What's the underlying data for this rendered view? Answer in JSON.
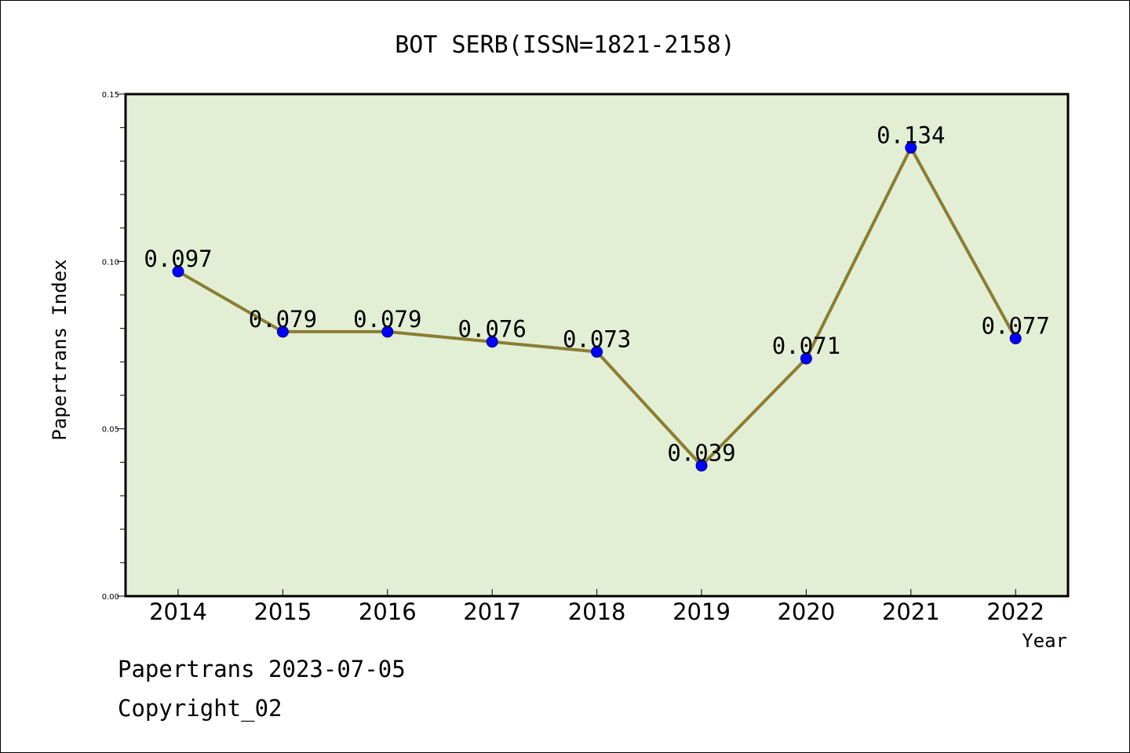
{
  "chart_data": {
    "type": "line",
    "title": "BOT SERB(ISSN=1821-2158)",
    "xlabel": "Year",
    "ylabel": "Papertrans Index",
    "x": [
      "2014",
      "2015",
      "2016",
      "2017",
      "2018",
      "2019",
      "2020",
      "2021",
      "2022"
    ],
    "series": [
      {
        "values": [
          0.097,
          0.079,
          0.079,
          0.076,
          0.073,
          0.039,
          0.071,
          0.134,
          0.077
        ]
      }
    ],
    "data_labels": [
      "0.097",
      "0.079",
      "0.079",
      "0.076",
      "0.073",
      "0.039",
      "0.071",
      "0.134",
      "0.077"
    ],
    "ylim": [
      0.0,
      0.15
    ],
    "yticks": [
      "0.00",
      "0.05",
      "0.10",
      "0.15"
    ],
    "grid": false,
    "colors": {
      "plot_background": "#e2efd5",
      "line": "#8b7d33",
      "marker": "#0000ff"
    }
  },
  "footer": {
    "line1": "Papertrans 2023-07-05",
    "line2": "Copyright_02"
  }
}
